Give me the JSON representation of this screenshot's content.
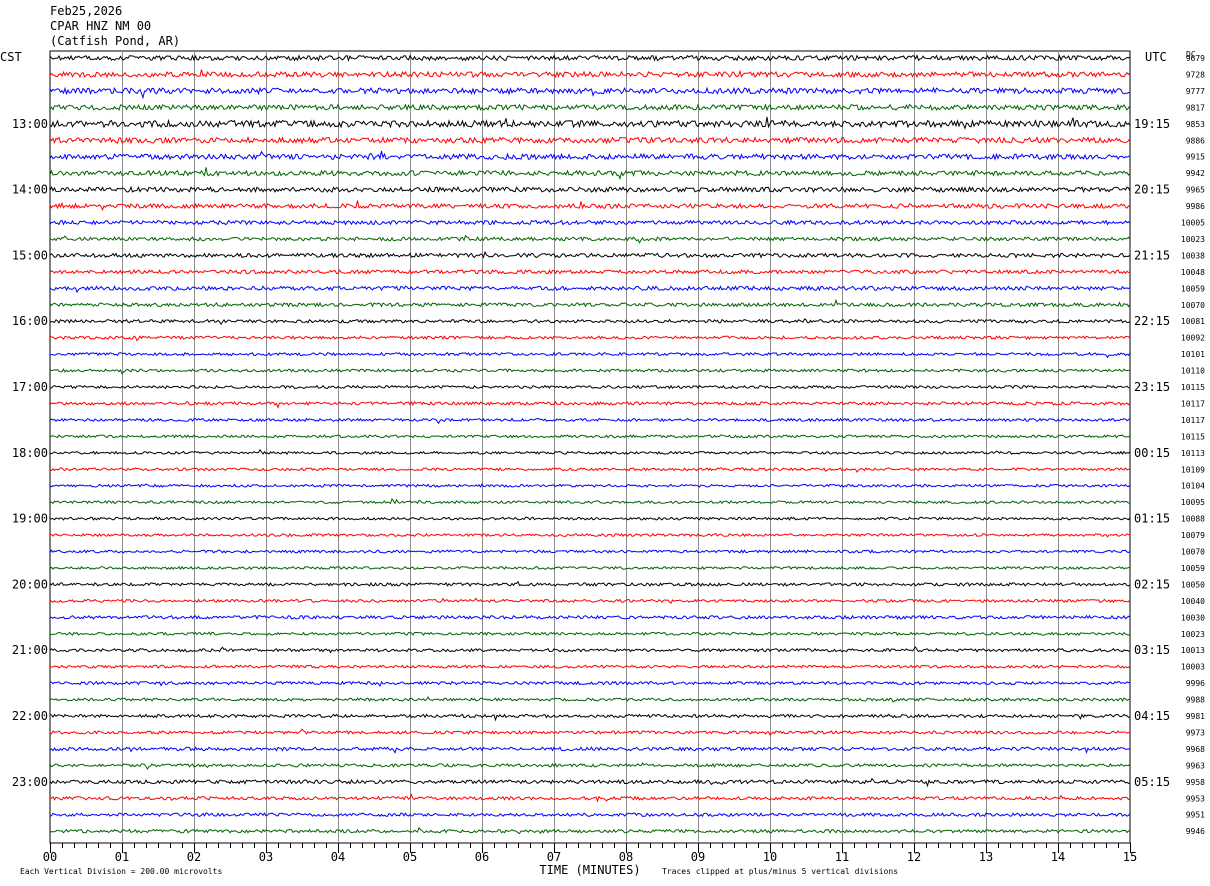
{
  "header": {
    "date": "Feb25,2026",
    "station": "CPAR HNZ NM 00",
    "location": "(Catfish Pond, AR)"
  },
  "chart_data": {
    "type": "line",
    "left_axis_label": "CST",
    "right_axis_label": "UTC",
    "dc_header": "DC",
    "xlabel": "TIME (MINUTES)",
    "x_ticks": [
      "00",
      "01",
      "02",
      "03",
      "04",
      "05",
      "06",
      "07",
      "08",
      "09",
      "10",
      "11",
      "12",
      "13",
      "14",
      "15"
    ],
    "xlim": [
      0,
      15
    ],
    "left_hour_labels": [
      {
        "trace": 4,
        "label": "13:00"
      },
      {
        "trace": 8,
        "label": "14:00"
      },
      {
        "trace": 12,
        "label": "15:00"
      },
      {
        "trace": 16,
        "label": "16:00"
      },
      {
        "trace": 20,
        "label": "17:00"
      },
      {
        "trace": 24,
        "label": "18:00"
      },
      {
        "trace": 28,
        "label": "19:00"
      },
      {
        "trace": 32,
        "label": "20:00"
      },
      {
        "trace": 36,
        "label": "21:00"
      },
      {
        "trace": 40,
        "label": "22:00"
      },
      {
        "trace": 44,
        "label": "23:00"
      }
    ],
    "right_hour_labels": [
      {
        "trace": 4,
        "label": "19:15"
      },
      {
        "trace": 8,
        "label": "20:15"
      },
      {
        "trace": 12,
        "label": "21:15"
      },
      {
        "trace": 16,
        "label": "22:15"
      },
      {
        "trace": 20,
        "label": "23:15"
      },
      {
        "trace": 24,
        "label": "00:15"
      },
      {
        "trace": 28,
        "label": "01:15"
      },
      {
        "trace": 32,
        "label": "02:15"
      },
      {
        "trace": 36,
        "label": "03:15"
      },
      {
        "trace": 40,
        "label": "04:15"
      },
      {
        "trace": 44,
        "label": "05:15"
      }
    ],
    "trace_colors": [
      "#000000",
      "#ff0000",
      "#0000ff",
      "#006400"
    ],
    "trace_amplitude": [
      2.4,
      2.6,
      2.8,
      2.6,
      3.2,
      2.8,
      2.6,
      2.4,
      2.4,
      2.2,
      2.0,
      1.8,
      2.0,
      1.8,
      2.0,
      1.8,
      1.6,
      1.5,
      1.4,
      1.4,
      1.4,
      1.6,
      1.4,
      1.3,
      1.3,
      1.3,
      1.3,
      1.3,
      1.3,
      1.3,
      1.3,
      1.3,
      1.5,
      1.4,
      1.6,
      1.4,
      1.5,
      1.4,
      1.5,
      1.4,
      1.6,
      1.5,
      1.7,
      1.5,
      1.8,
      1.6,
      1.6,
      1.6
    ],
    "dc_values": [
      "9679",
      "9728",
      "9777",
      "9817",
      "9853",
      "9886",
      "9915",
      "9942",
      "9965",
      "9986",
      "10005",
      "10023",
      "10038",
      "10048",
      "10059",
      "10070",
      "10081",
      "10092",
      "10101",
      "10110",
      "10115",
      "10117",
      "10117",
      "10115",
      "10113",
      "10109",
      "10104",
      "10095",
      "10088",
      "10079",
      "10070",
      "10059",
      "10050",
      "10040",
      "10030",
      "10023",
      "10013",
      "10003",
      "9996",
      "9988",
      "9981",
      "9973",
      "9968",
      "9963",
      "9958",
      "9953",
      "9951",
      "9946"
    ],
    "footer_left": "Each Vertical Division =  200.00 microvolts",
    "footer_right": "Traces clipped at plus/minus 5 vertical divisions",
    "grid": true
  }
}
